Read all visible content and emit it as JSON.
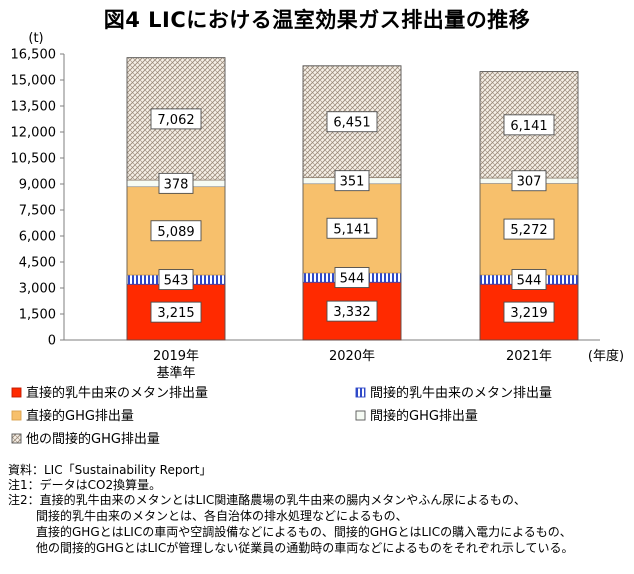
{
  "title": "図4 LICにおける温室効果ガス排出量の推移",
  "colors": {
    "methane_direct": "#ff2a00",
    "methane_indirect": "#2f49c8",
    "ghg_direct": "#f7c06c",
    "ghg_indirect": "#f6fbf4",
    "other_indirect": "#f5efe6",
    "other_hatch": "#9a8a7a"
  },
  "chart_data": {
    "type": "bar",
    "stacked": true,
    "unit_label": "(t)",
    "x_unit_label": "(年度)",
    "categories": [
      "2019年",
      "2020年",
      "2021年"
    ],
    "category_sublabels": [
      "基準年",
      "",
      ""
    ],
    "ylim": [
      0,
      16500
    ],
    "yticks": [
      0,
      1500,
      3000,
      4500,
      6000,
      7500,
      9000,
      10500,
      12000,
      13500,
      15000,
      16500
    ],
    "ytick_labels": [
      "0",
      "1,500",
      "3,000",
      "4,500",
      "6,000",
      "7,500",
      "9,000",
      "10,500",
      "12,000",
      "13,500",
      "15,000",
      "16,500"
    ],
    "grid": false,
    "legend_position": "bottom",
    "series": [
      {
        "name": "直接的乳牛由来のメタン排出量",
        "key": "methane_direct",
        "values": [
          3215,
          3332,
          3219
        ],
        "labels": [
          "3,215",
          "3,332",
          "3,219"
        ]
      },
      {
        "name": "間接的乳牛由来のメタン排出量",
        "key": "methane_indirect",
        "values": [
          543,
          544,
          544
        ],
        "labels": [
          "543",
          "544",
          "544"
        ]
      },
      {
        "name": "直接的GHG排出量",
        "key": "ghg_direct",
        "values": [
          5089,
          5141,
          5272
        ],
        "labels": [
          "5,089",
          "5,141",
          "5,272"
        ]
      },
      {
        "name": "間接的GHG排出量",
        "key": "ghg_indirect",
        "values": [
          378,
          351,
          307
        ],
        "labels": [
          "378",
          "351",
          "307"
        ]
      },
      {
        "name": "他の間接的GHG排出量",
        "key": "other_indirect",
        "values": [
          7062,
          6451,
          6141
        ],
        "labels": [
          "7,062",
          "6,451",
          "6,141"
        ]
      }
    ]
  },
  "notes": [
    "資料：LIC「Sustainability Report」",
    "注1：データはCO2換算量。",
    "注2：直接的乳牛由来のメタンとはLIC関連酪農場の乳牛由来の腸内メタンやふん尿によるもの、",
    "間接的乳牛由来のメタンとは、各自治体の排水処理などによるもの、",
    "直接的GHGとはLICの車両や空調設備などによるもの、間接的GHGとはLICの購入電力によるもの、",
    "他の間接的GHGとはLICが管理しない従業員の通勤時の車両などによるものをそれぞれ示している。"
  ]
}
